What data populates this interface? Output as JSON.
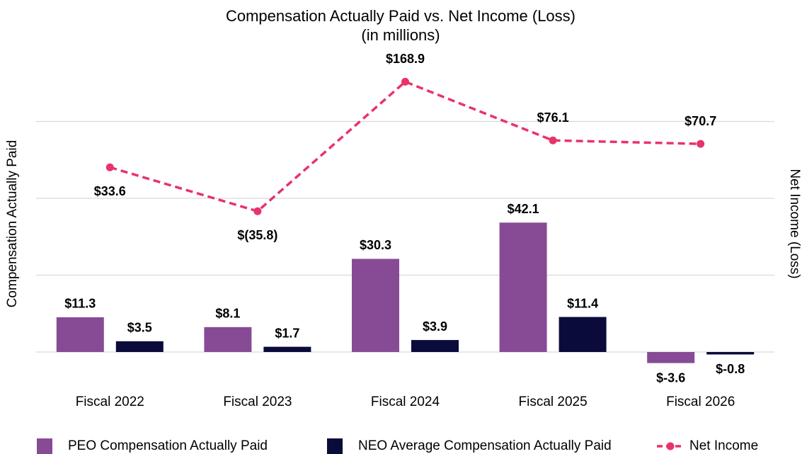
{
  "chart_data": {
    "type": "bar",
    "title": "Compensation Actually Paid vs. Net Income (Loss)",
    "subtitle": "(in millions)",
    "y_label": "Compensation Actually Paid",
    "y2_label": "Net Income (Loss)",
    "categories": [
      "Fiscal 2022",
      "Fiscal 2023",
      "Fiscal 2024",
      "Fiscal 2025",
      "Fiscal 2026"
    ],
    "series": [
      {
        "name": "PEO Compensation Actually Paid",
        "type": "bar",
        "color": "#874b96",
        "values": [
          11.3,
          8.1,
          30.3,
          42.1,
          -3.6
        ],
        "value_labels": [
          "$11.3",
          "$8.1",
          "$30.3",
          "$42.1",
          "$-3.6"
        ]
      },
      {
        "name": "NEO Average Compensation Actually Paid",
        "type": "bar",
        "color": "#0b0b3b",
        "values": [
          3.5,
          1.7,
          3.9,
          11.4,
          -0.8
        ],
        "value_labels": [
          "$3.5",
          "$1.7",
          "$3.9",
          "$11.4",
          "$-0.8"
        ]
      },
      {
        "name": "Net Income",
        "type": "line",
        "axis": "y2",
        "color": "#e8336a",
        "dashed": true,
        "values": [
          33.6,
          -35.8,
          168.9,
          76.1,
          70.7
        ],
        "value_labels": [
          "$33.6",
          "$(35.8)",
          "$168.9",
          "$76.1",
          "$70.7"
        ]
      }
    ],
    "ylim": [
      -10,
      90
    ],
    "yticks": [
      0,
      25,
      50,
      75
    ],
    "y2lim": [
      -307,
      179
    ],
    "grid": true,
    "legend": "bottom"
  }
}
